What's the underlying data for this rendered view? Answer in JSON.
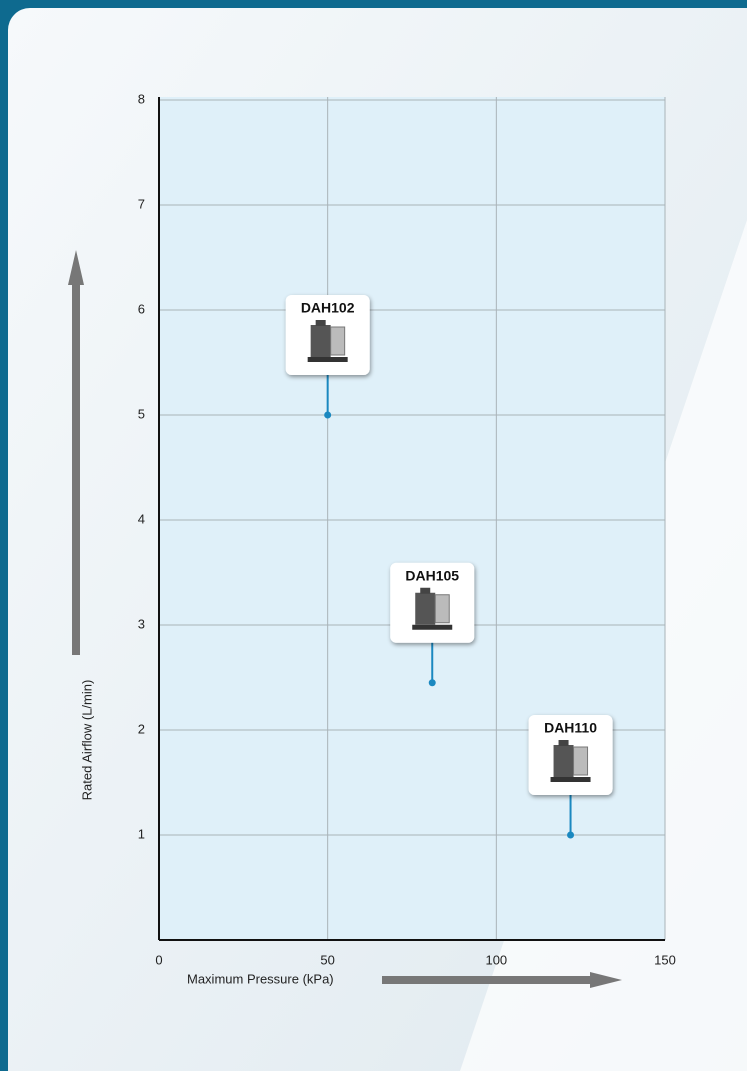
{
  "chart_data": {
    "type": "scatter",
    "x_label": "Maximum Pressure (kPa)",
    "y_label": "Rated Airflow (L/min)",
    "labels": [
      "DAH102",
      "DAH105",
      "DAH110"
    ],
    "x": [
      50,
      81,
      122
    ],
    "values": [
      5,
      2.45,
      1
    ],
    "color": "#1a88c0",
    "xlim": [
      0,
      150
    ],
    "xticks": [
      0,
      50,
      100,
      150
    ],
    "ylim": [
      0,
      8
    ],
    "yticks": [
      1,
      2,
      3,
      4,
      5,
      6,
      7,
      8
    ],
    "grid": true
  }
}
